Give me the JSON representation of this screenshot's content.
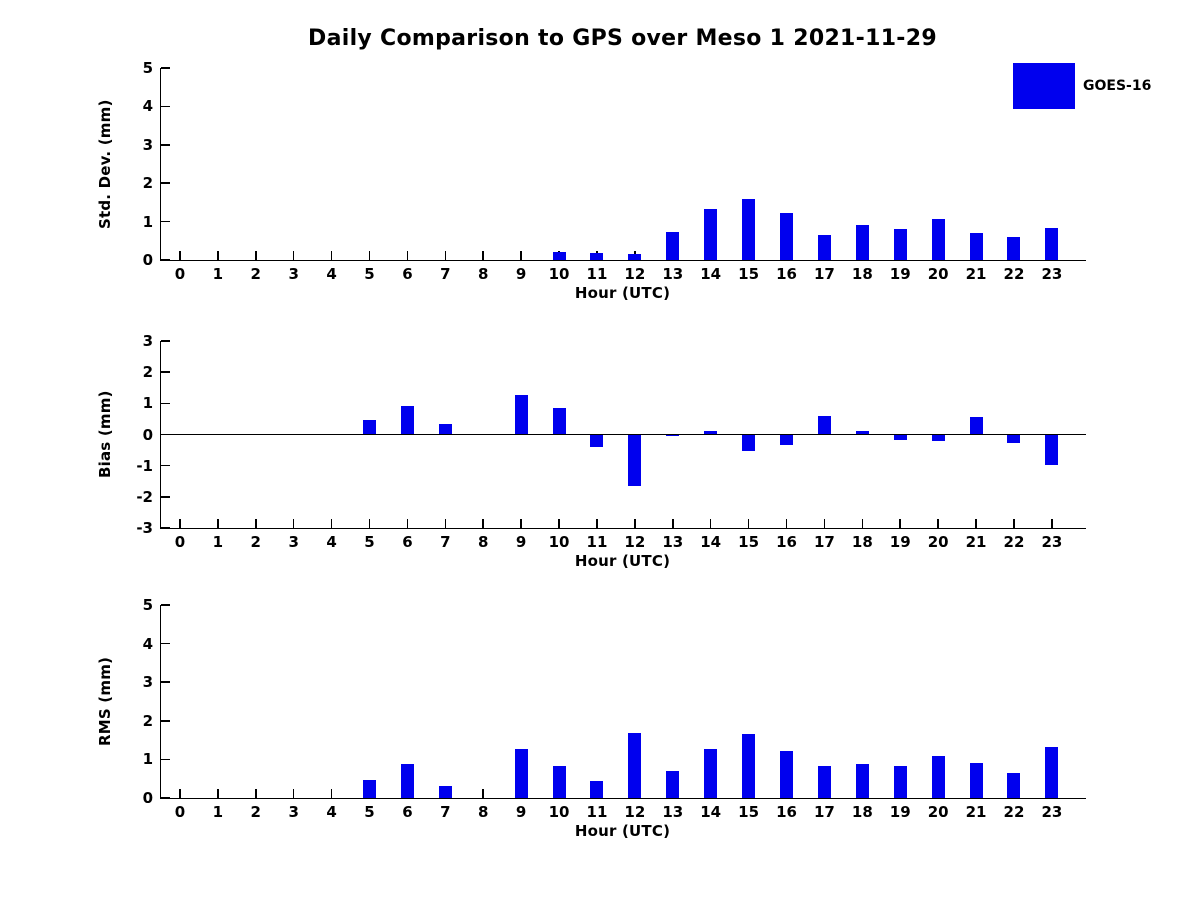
{
  "title": "Daily Comparison to GPS over Meso 1 2021-11-29",
  "legend": {
    "label": "GOES-16",
    "color": "#0000ee"
  },
  "colors": {
    "bar": "#0000ee",
    "axis": "#000000",
    "background": "#ffffff"
  },
  "chart_data": [
    {
      "type": "bar",
      "panel": "std_dev",
      "series_name": "GOES-16",
      "xlabel": "Hour (UTC)",
      "ylabel": "Std. Dev. (mm)",
      "categories": [
        "0",
        "1",
        "2",
        "3",
        "4",
        "5",
        "6",
        "7",
        "8",
        "9",
        "10",
        "11",
        "12",
        "13",
        "14",
        "15",
        "16",
        "17",
        "18",
        "19",
        "20",
        "21",
        "22",
        "23"
      ],
      "values": [
        0,
        0,
        0,
        0,
        0,
        0,
        0,
        0,
        0,
        0,
        0.2,
        0.17,
        0.15,
        0.72,
        1.32,
        1.58,
        1.22,
        0.66,
        0.9,
        0.81,
        1.08,
        0.71,
        0.61,
        0.84
      ],
      "ylim": [
        0,
        5
      ],
      "yticks": [
        0,
        1,
        2,
        3,
        4,
        5
      ],
      "grid": false,
      "legend_position": "upper-right-outside"
    },
    {
      "type": "bar",
      "panel": "bias",
      "series_name": "GOES-16",
      "xlabel": "Hour (UTC)",
      "ylabel": "Bias (mm)",
      "categories": [
        "0",
        "1",
        "2",
        "3",
        "4",
        "5",
        "6",
        "7",
        "8",
        "9",
        "10",
        "11",
        "12",
        "13",
        "14",
        "15",
        "16",
        "17",
        "18",
        "19",
        "20",
        "21",
        "22",
        "23"
      ],
      "values": [
        0,
        0,
        0,
        0,
        0,
        0.47,
        0.9,
        0.34,
        0,
        1.28,
        0.84,
        -0.39,
        -1.65,
        -0.04,
        0.12,
        -0.53,
        -0.34,
        0.58,
        0.11,
        -0.18,
        -0.22,
        0.55,
        -0.28,
        -0.98
      ],
      "ylim": [
        -3,
        3
      ],
      "yticks": [
        -3,
        -2,
        -1,
        0,
        1,
        2,
        3
      ],
      "zero_line": true,
      "grid": false
    },
    {
      "type": "bar",
      "panel": "rms",
      "series_name": "GOES-16",
      "xlabel": "Hour (UTC)",
      "ylabel": "RMS (mm)",
      "categories": [
        "0",
        "1",
        "2",
        "3",
        "4",
        "5",
        "6",
        "7",
        "8",
        "9",
        "10",
        "11",
        "12",
        "13",
        "14",
        "15",
        "16",
        "17",
        "18",
        "19",
        "20",
        "21",
        "22",
        "23"
      ],
      "values": [
        0,
        0,
        0,
        0,
        0,
        0.46,
        0.89,
        0.3,
        0,
        1.27,
        0.82,
        0.44,
        1.68,
        0.71,
        1.28,
        1.65,
        1.23,
        0.84,
        0.87,
        0.84,
        1.08,
        0.9,
        0.66,
        1.32
      ],
      "ylim": [
        0,
        5
      ],
      "yticks": [
        0,
        1,
        2,
        3,
        4,
        5
      ],
      "grid": false
    }
  ]
}
